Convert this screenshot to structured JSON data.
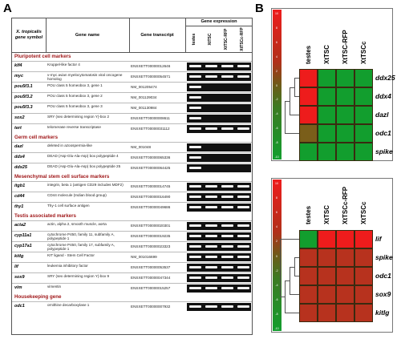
{
  "panel_a": {
    "letter": "A",
    "headers": {
      "symbol": "X. tropicalis gene symbol",
      "name": "Gene name",
      "transcript": "Gene transcript",
      "expression": "Gene expression",
      "lanes": [
        "testes",
        "XtTSC",
        "XtTSC-RFP",
        "XtTSCc-RFP"
      ]
    },
    "sections": [
      {
        "title": "Pluripotent cell markers",
        "rows": [
          {
            "symbol": "klf4",
            "name": "Kruppel-like factor 4",
            "transcript": "ENSXETT00000012646",
            "bands": [
              1,
              1,
              1,
              1
            ]
          },
          {
            "symbol": "myc",
            "name": "v-myc avian myelocytomatosis viral oncogene homolog",
            "transcript": "ENSXETT00000054571",
            "bands": [
              1,
              1,
              1,
              1
            ]
          },
          {
            "symbol": "pou5f3.1",
            "name": "POU class 5 homeobox 3, gene 1",
            "transcript": "NM_001205474",
            "bands": [
              1,
              0,
              0,
              0
            ]
          },
          {
            "symbol": "pou5f3.2",
            "name": "POU class 5 homeobox 3, gene 2",
            "transcript": "NM_001129034",
            "bands": [
              1,
              0,
              0,
              0
            ]
          },
          {
            "symbol": "pou5f3.3",
            "name": "POU class 5 homeobox 3, gene 3",
            "transcript": "NM_001130984",
            "bands": [
              1,
              0,
              0,
              0
            ]
          },
          {
            "symbol": "sox2",
            "name": "SRY (sex determining region Y)-box 2",
            "transcript": "ENSXETT00000008611",
            "bands": [
              1,
              0,
              0,
              0
            ]
          },
          {
            "symbol": "tert",
            "name": "telomerase reverse transcriptase",
            "transcript": "ENSXETT00000031112",
            "bands": [
              1,
              1,
              1,
              1
            ]
          }
        ]
      },
      {
        "title": "Germ cell markers",
        "rows": [
          {
            "symbol": "dazl",
            "name": "deleted in azoospermia-like",
            "transcript": "NM_001048",
            "bands": [
              1,
              0,
              0,
              0
            ]
          },
          {
            "symbol": "ddx4",
            "name": "DEAD (Asp-Glu-Ala-Asp) box polypeptide 4",
            "transcript": "ENSXETT00000065336",
            "bands": [
              1,
              0,
              0,
              0
            ]
          },
          {
            "symbol": "ddx25",
            "name": "DEAD (Asp-Glu-Ala-Asp) box polypeptide 25",
            "transcript": "ENSXETT00000064425",
            "bands": [
              1,
              0,
              0,
              0
            ]
          }
        ]
      },
      {
        "title": "Mesenchymal stem cell surface markers",
        "rows": [
          {
            "symbol": "itgb1",
            "name": "integrin, beta 1 (antigen CD29 includes MDF2)",
            "transcript": "ENSXETT00000014745",
            "bands": [
              1,
              1,
              1,
              1
            ]
          },
          {
            "symbol": "cd44",
            "name": "CD44 molecule (Indian blood group)",
            "transcript": "ENSXETT00000016490",
            "bands": [
              1,
              1,
              1,
              1
            ]
          },
          {
            "symbol": "thy1",
            "name": "Thy-1 cell surface antigen",
            "transcript": "ENSXETT00000049686",
            "bands": [
              1,
              1,
              1,
              1
            ]
          }
        ]
      },
      {
        "title": "Testis associated markers",
        "rows": [
          {
            "symbol": "acta2",
            "name": "actin, alpha 2, smooth muscle, aorta",
            "transcript": "ENSXETT00000020301",
            "bands": [
              1,
              1,
              1,
              1
            ]
          },
          {
            "symbol": "cyp11a1",
            "name": "cytochrome P450, family 11, subfamily A, polypeptide 1",
            "transcript": "ENSXETT00000019235",
            "bands": [
              1,
              1,
              1,
              1
            ]
          },
          {
            "symbol": "cyp17a1",
            "name": "cytochrome P450, family 17, subfamily A, polypeptide 1",
            "transcript": "ENSXETT00000023323",
            "bands": [
              1,
              1,
              1,
              1
            ]
          },
          {
            "symbol": "kitlg",
            "name": "KIT ligand - Stem Cell Factor",
            "transcript": "NM_001016699",
            "bands": [
              1,
              1,
              1,
              1
            ]
          },
          {
            "symbol": "lif",
            "name": "leukemia inhibitory factor",
            "transcript": "ENSXETT00000053537",
            "bands": [
              1,
              1,
              1,
              1
            ]
          },
          {
            "symbol": "sox9",
            "name": "SRY (sex determining region Y)-box 9",
            "transcript": "ENSXETT00000047344",
            "bands": [
              1,
              1,
              1,
              1
            ]
          },
          {
            "symbol": "vim",
            "name": "vimentin",
            "transcript": "ENSXETT00000015257",
            "bands": [
              1,
              1,
              1,
              1
            ]
          }
        ]
      },
      {
        "title": "Housekeeping gene",
        "rows": [
          {
            "symbol": "odc1",
            "name": "ornithine decarboxylase 1",
            "transcript": "ENSXETT00000007932",
            "bands": [
              1,
              1,
              1,
              1
            ]
          }
        ]
      }
    ]
  },
  "panel_b": {
    "letter": "B",
    "scale_labels": [
      "10",
      "8",
      "6",
      "4",
      "2",
      "0",
      "-2",
      "-4",
      "-6",
      "-8",
      "-10"
    ],
    "colors": {
      "red": "#ee1c1c",
      "green": "#129e2e",
      "brown": "#7a5e1a",
      "reddish": "#b7321e"
    },
    "heatmap_top": {
      "columns": [
        "testes",
        "XtTSC",
        "XtTSC-RFP",
        "XtTSCc"
      ],
      "rows": [
        "ddx25",
        "ddx4",
        "dazl",
        "odc1",
        "spike"
      ],
      "cells": [
        [
          "red",
          "green",
          "green",
          "green"
        ],
        [
          "red",
          "green",
          "green",
          "green"
        ],
        [
          "red",
          "green",
          "green",
          "green"
        ],
        [
          "brown",
          "green",
          "green",
          "green"
        ],
        [
          "green",
          "green",
          "green",
          "green"
        ]
      ]
    },
    "heatmap_bottom": {
      "columns": [
        "testes",
        "XtTSC",
        "XtTSCc-RFP",
        "XtTSCc"
      ],
      "rows": [
        "lif",
        "spike",
        "odc1",
        "sox9",
        "kitlg"
      ],
      "cells": [
        [
          "green",
          "red",
          "red",
          "red"
        ],
        [
          "reddish",
          "reddish",
          "reddish",
          "reddish"
        ],
        [
          "reddish",
          "reddish",
          "reddish",
          "reddish"
        ],
        [
          "reddish",
          "reddish",
          "reddish",
          "reddish"
        ],
        [
          "reddish",
          "reddish",
          "reddish",
          "reddish"
        ]
      ]
    }
  }
}
